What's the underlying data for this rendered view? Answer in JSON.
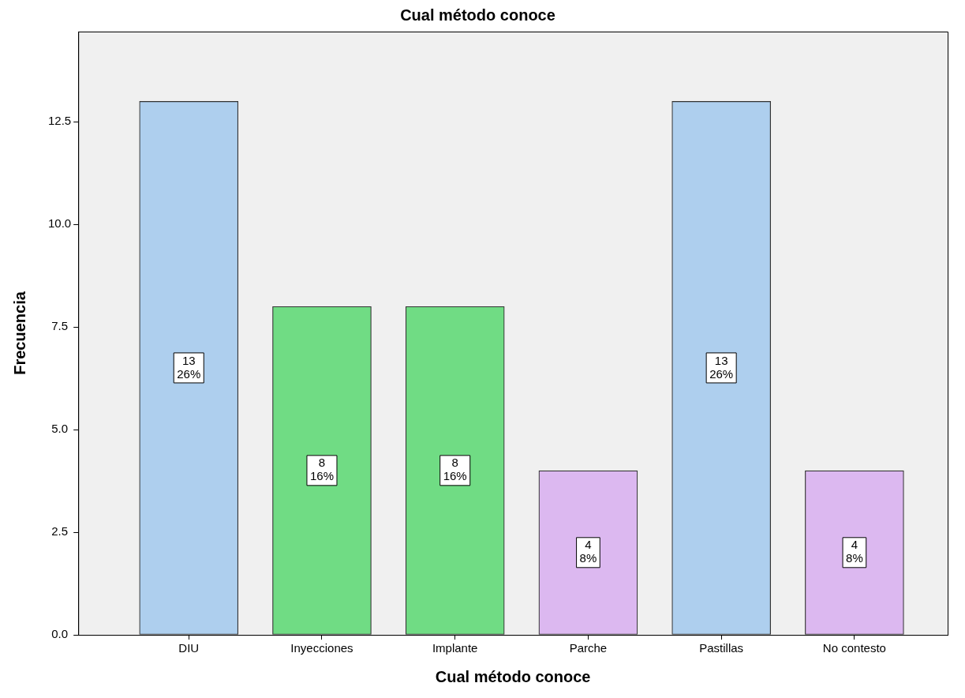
{
  "chart_data": {
    "type": "bar",
    "title": "Cual método conoce",
    "xlabel": "Cual método conoce",
    "ylabel": "Frecuencia",
    "categories": [
      "DIU",
      "Inyecciones",
      "Implante",
      "Parche",
      "Pastillas",
      "No contesto"
    ],
    "values": [
      13,
      8,
      8,
      4,
      13,
      4
    ],
    "colors": [
      "#aecfee",
      "#70dc84",
      "#70dc84",
      "#dcb8f0",
      "#aecfee",
      "#dcb8f0"
    ],
    "value_labels": [
      "13\n26%",
      "8\n16%",
      "8\n16%",
      "4\n8%",
      "13\n26%",
      "4\n8%"
    ],
    "ylim": [
      0,
      14.7
    ],
    "yticks": [
      {
        "value": 0,
        "label": "0.0"
      },
      {
        "value": 2.5,
        "label": "2.5"
      },
      {
        "value": 5,
        "label": "5.0"
      },
      {
        "value": 7.5,
        "label": "7.5"
      },
      {
        "value": 10,
        "label": "10.0"
      },
      {
        "value": 12.5,
        "label": "12.5"
      }
    ],
    "grid": false,
    "legend": false
  }
}
